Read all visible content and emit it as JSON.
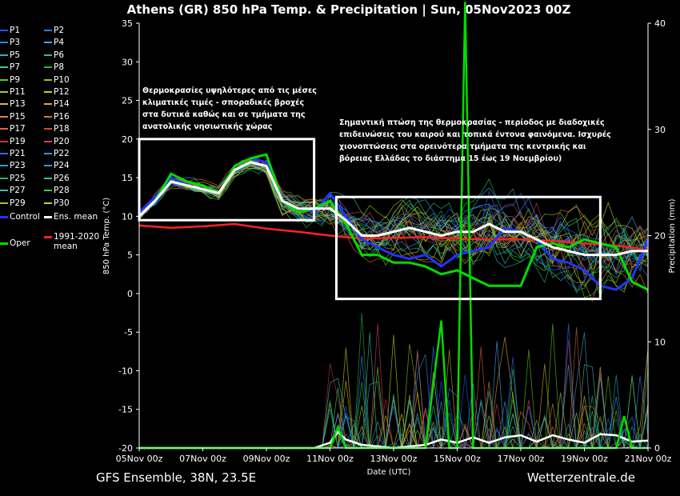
{
  "chart_data": {
    "type": "line",
    "title": "Athens  (GR)  850 hPa Temp. & Precipitation | Sun, 05Nov2023 00Z",
    "ylabel": "850 hPa Temp. (°C)",
    "y2label": "Precipitation (mm)",
    "xlabel": "Date (UTC)",
    "ylim": [
      -20,
      35
    ],
    "y2lim": [
      0,
      40
    ],
    "yticks": [
      35,
      30,
      25,
      20,
      15,
      10,
      5,
      0,
      -5,
      -10,
      -15,
      -20
    ],
    "y2ticks": [
      40,
      30,
      20,
      10,
      0
    ],
    "x_days": [
      0,
      2,
      4,
      6,
      8,
      10,
      12,
      14,
      16
    ],
    "x_tick_labels": [
      "05Nov 00z",
      "07Nov 00z",
      "09Nov 00z",
      "11Nov 00z",
      "13Nov 00z",
      "15Nov 00z",
      "17Nov 00z",
      "19Nov 00z",
      "21Nov 00z"
    ],
    "grid": false,
    "legend_position": "left",
    "series": [
      {
        "name": "Ens. mean",
        "color": "#ffffff",
        "x": [
          0,
          0.5,
          1,
          1.5,
          2,
          2.5,
          3,
          3.5,
          4,
          4.5,
          5,
          5.5,
          6,
          6.5,
          7,
          7.5,
          8,
          8.5,
          9,
          9.5,
          10,
          10.5,
          11,
          11.5,
          12,
          12.5,
          13,
          13.5,
          14,
          14.5,
          15,
          15.5,
          16
        ],
        "values": [
          10,
          12,
          14.5,
          14,
          13.5,
          13,
          16,
          17,
          16.5,
          12,
          11,
          11,
          11,
          9.5,
          7.5,
          7.5,
          8,
          8.5,
          8,
          7.5,
          8,
          8,
          9,
          8,
          8,
          7,
          6,
          5.5,
          5,
          5,
          5,
          5.5,
          5.5
        ]
      },
      {
        "name": "Control",
        "color": "#2233ff",
        "x": [
          0,
          0.5,
          1,
          1.5,
          2,
          2.5,
          3,
          3.5,
          4,
          4.5,
          5,
          5.5,
          6,
          6.5,
          7,
          7.5,
          8,
          8.5,
          9,
          9.5,
          10,
          10.5,
          11,
          11.5,
          12,
          12.5,
          13,
          13.5,
          14,
          14.5,
          15,
          15.5,
          16
        ],
        "values": [
          10.5,
          12.5,
          15,
          14,
          13.5,
          13,
          16.5,
          17.5,
          17,
          12,
          11,
          10.5,
          13,
          10,
          7,
          6,
          5,
          4.5,
          5,
          3.5,
          5,
          5.5,
          6,
          8.5,
          8,
          7,
          4.5,
          4,
          3,
          1,
          0.5,
          2,
          7
        ]
      },
      {
        "name": "Oper",
        "color": "#00dd00",
        "x": [
          0,
          0.5,
          1,
          1.5,
          2,
          2.5,
          3,
          3.5,
          4,
          4.5,
          5,
          5.5,
          6,
          6.5,
          7,
          7.5,
          8,
          8.5,
          9,
          9.5,
          10,
          10.5,
          11,
          11.5,
          12,
          12.5,
          13,
          13.5,
          14,
          14.5,
          15,
          15.5,
          16
        ],
        "values": [
          10,
          12,
          15.5,
          14.5,
          14,
          13,
          16.5,
          17.5,
          18,
          12,
          10.5,
          11,
          12,
          9,
          5,
          5,
          4,
          4,
          3.5,
          2.5,
          3,
          2,
          1,
          1,
          1,
          6,
          6.5,
          6,
          7,
          6.5,
          6,
          1.5,
          0.5
        ]
      },
      {
        "name": "1991-2020 mean",
        "color": "#ff2222",
        "x": [
          0,
          1,
          2,
          3,
          4,
          5,
          6,
          7,
          8,
          9,
          10,
          11,
          12,
          13,
          14,
          15,
          16
        ],
        "values": [
          8.8,
          8.5,
          8.7,
          9,
          8.4,
          8,
          7.5,
          7.1,
          7.2,
          7.3,
          7.1,
          7,
          7,
          6.8,
          6.5,
          6.2,
          5.7
        ]
      }
    ],
    "precipitation_series": [
      {
        "name": "Ens. mean",
        "color": "#ffffff",
        "unit": "mm",
        "x": [
          0,
          5.5,
          6,
          6.25,
          6.5,
          7,
          8,
          9,
          9.5,
          10,
          10.5,
          11,
          11.5,
          12,
          12.5,
          13,
          13.5,
          14,
          14.5,
          15,
          15.5,
          16
        ],
        "values": [
          0,
          0,
          0.5,
          1.5,
          0.8,
          0.3,
          0,
          0.3,
          0.8,
          0.5,
          1,
          0.5,
          1,
          1.2,
          0.6,
          1.2,
          0.8,
          0.5,
          1.3,
          1.2,
          0.6,
          0.7
        ]
      },
      {
        "name": "Oper",
        "color": "#00dd00",
        "unit": "mm",
        "x": [
          0,
          5.5,
          6,
          6.25,
          6.5,
          7,
          8,
          9,
          9.5,
          9.75,
          10,
          10.25,
          10.5,
          11,
          11.5,
          12,
          13,
          14,
          15,
          15.25,
          15.5,
          15.75,
          16
        ],
        "values": [
          0,
          0,
          0,
          2,
          0,
          0,
          0,
          0,
          12,
          0,
          0,
          42,
          0,
          0,
          0,
          0,
          0,
          0,
          0,
          3,
          0,
          0,
          0
        ]
      }
    ],
    "annotations": [
      "Θερμοκρασίες υψηλότερες από τις μέσες κλιματικές τιμές - σποραδικές βροχές στα δυτικά καθώς και σε τμήματα της ανατολικής νησιωτικής χώρας",
      "Σημαντική πτώση της θερμοκρασίας - περίοδος με διαδοχικές επιδεινώσεις του καιρού και τοπικά έντονα φαινόμενα. Ισχυρές χιονοπτώσεις στα ορεινότερα τμήματα της κεντρικής και βόρειας Ελλάδας το διάστημα 15 έως 19 Νοεμβρίου)"
    ],
    "annotation_boxes": [
      {
        "x0": 0,
        "x1": 5.5,
        "y0": 9.5,
        "y1": 20
      },
      {
        "x0": 6.2,
        "x1": 14.5,
        "y0": -0.7,
        "y1": 12.5
      }
    ]
  },
  "legend": {
    "items": [
      {
        "label": "P1",
        "color": "#2255ff"
      },
      {
        "label": "P2",
        "color": "#3377ff"
      },
      {
        "label": "P3",
        "color": "#2288ff"
      },
      {
        "label": "P4",
        "color": "#44aaff"
      },
      {
        "label": "P5",
        "color": "#33aacc"
      },
      {
        "label": "P6",
        "color": "#22cc77"
      },
      {
        "label": "P7",
        "color": "#33ccaa"
      },
      {
        "label": "P8",
        "color": "#22bb44"
      },
      {
        "label": "P9",
        "color": "#55cc22"
      },
      {
        "label": "P10",
        "color": "#88cc22"
      },
      {
        "label": "P11",
        "color": "#aacc22"
      },
      {
        "label": "P12",
        "color": "#cccc22"
      },
      {
        "label": "P13",
        "color": "#ddbb22"
      },
      {
        "label": "P14",
        "color": "#ddaa22"
      },
      {
        "label": "P15",
        "color": "#dd8833"
      },
      {
        "label": "P16",
        "color": "#dd7733"
      },
      {
        "label": "P17",
        "color": "#dd6633"
      },
      {
        "label": "P18",
        "color": "#dd4433"
      },
      {
        "label": "P19",
        "color": "#cc3344"
      },
      {
        "label": "P20",
        "color": "#cc4466"
      },
      {
        "label": "P21",
        "color": "#3366ff"
      },
      {
        "label": "P22",
        "color": "#4488ff"
      },
      {
        "label": "P23",
        "color": "#22aacc"
      },
      {
        "label": "P24",
        "color": "#3399dd"
      },
      {
        "label": "P25",
        "color": "#22bb66"
      },
      {
        "label": "P26",
        "color": "#33cc88"
      },
      {
        "label": "P27",
        "color": "#44bbaa"
      },
      {
        "label": "P28",
        "color": "#33cc55"
      },
      {
        "label": "P29",
        "color": "#99cc22"
      },
      {
        "label": "P30",
        "color": "#cccc33"
      },
      {
        "label": "Control",
        "color": "#2233ff"
      },
      {
        "label": "Ens. mean",
        "color": "#ffffff"
      },
      {
        "label": "Oper",
        "color": "#00dd00"
      },
      {
        "label": "1991-2020",
        "color": "#ff2222"
      },
      {
        "label": "mean",
        "color": "#ff2222"
      }
    ]
  },
  "footer": {
    "left": "GFS Ensemble, 38N, 23.5E",
    "right": "Wetterzentrale.de"
  }
}
